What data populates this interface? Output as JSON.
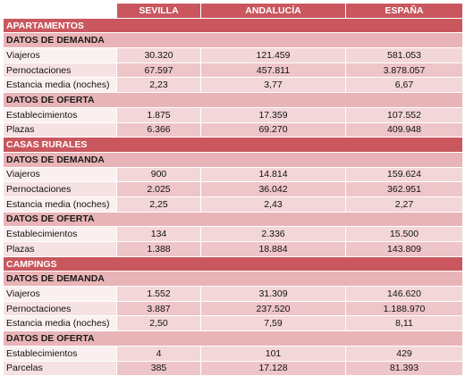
{
  "columns": [
    "SEVILLA",
    "ANDALUCÍA",
    "ESPAÑA"
  ],
  "groups": [
    {
      "title": "APARTAMENTOS",
      "subsections": [
        {
          "title": "DATOS DE DEMANDA",
          "rows": [
            {
              "label": "Viajeros",
              "values": [
                "30.320",
                "121.459",
                "581.053"
              ]
            },
            {
              "label": "Pernoctaciones",
              "values": [
                "67.597",
                "457.811",
                "3.878.057"
              ]
            },
            {
              "label": "Estancia media (noches)",
              "values": [
                "2,23",
                "3,77",
                "6,67"
              ]
            }
          ]
        },
        {
          "title": "DATOS DE OFERTA",
          "rows": [
            {
              "label": "Establecimientos",
              "values": [
                "1.875",
                "17.359",
                "107.552"
              ]
            },
            {
              "label": "Plazas",
              "values": [
                "6.366",
                "69.270",
                "409.948"
              ]
            }
          ]
        }
      ]
    },
    {
      "title": "CASAS RURALES",
      "subsections": [
        {
          "title": "DATOS DE DEMANDA",
          "rows": [
            {
              "label": "Viajeros",
              "values": [
                "900",
                "14.814",
                "159.624"
              ]
            },
            {
              "label": "Pernoctaciones",
              "values": [
                "2.025",
                "36.042",
                "362.951"
              ]
            },
            {
              "label": "Estancia media (noches)",
              "values": [
                "2,25",
                "2,43",
                "2,27"
              ]
            }
          ]
        },
        {
          "title": "DATOS DE OFERTA",
          "rows": [
            {
              "label": "Establecimientos",
              "values": [
                "134",
                "2.336",
                "15.500"
              ]
            },
            {
              "label": "Plazas",
              "values": [
                "1.388",
                "18.884",
                "143.809"
              ]
            }
          ]
        }
      ]
    },
    {
      "title": "CAMPINGS",
      "subsections": [
        {
          "title": "DATOS DE DEMANDA",
          "rows": [
            {
              "label": "Viajeros",
              "values": [
                "1.552",
                "31.309",
                "146.620"
              ]
            },
            {
              "label": "Pernoctaciones",
              "values": [
                "3.887",
                "237.520",
                "1.188.970"
              ]
            },
            {
              "label": "Estancia media (noches)",
              "values": [
                "2,50",
                "7,59",
                "8,11"
              ]
            }
          ]
        },
        {
          "title": "DATOS DE OFERTA",
          "rows": [
            {
              "label": "Establecimientos",
              "values": [
                "4",
                "101",
                "429"
              ]
            },
            {
              "label": "Parcelas",
              "values": [
                "385",
                "17.128",
                "81.393"
              ]
            }
          ]
        }
      ]
    }
  ]
}
